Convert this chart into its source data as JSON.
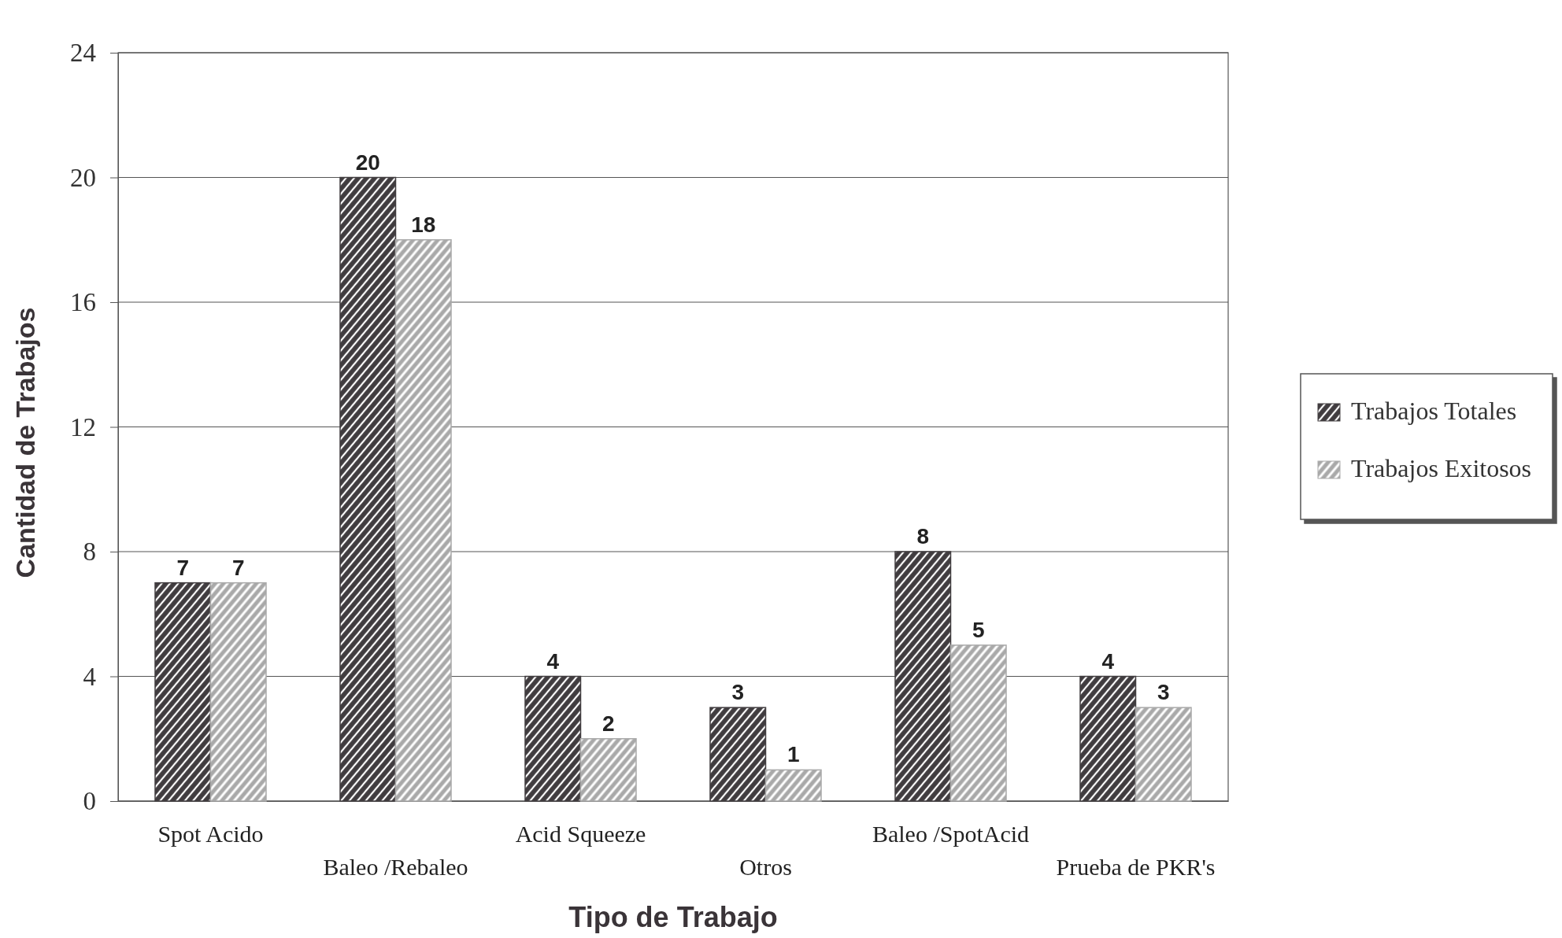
{
  "chart_data": {
    "type": "bar",
    "xlabel": "Tipo de Trabajo",
    "ylabel": "Cantidad de Trabajos",
    "categories": [
      "Spot Acido",
      "Baleo /Rebaleo",
      "Acid Squeeze",
      "Otros",
      "Baleo /SpotAcid",
      "Prueba de PKR's"
    ],
    "series": [
      {
        "name": "Trabajos Totales",
        "color": "#403c3f",
        "values": [
          7,
          20,
          4,
          3,
          8,
          4
        ]
      },
      {
        "name": "Trabajos Exitosos",
        "color": "#a9a9a9",
        "values": [
          7,
          18,
          2,
          1,
          5,
          3
        ]
      }
    ],
    "ylim": [
      0,
      24
    ],
    "yticks": [
      0,
      4,
      8,
      12,
      16,
      20,
      24
    ],
    "grid": "y",
    "legend": "right",
    "data_labels": true
  }
}
